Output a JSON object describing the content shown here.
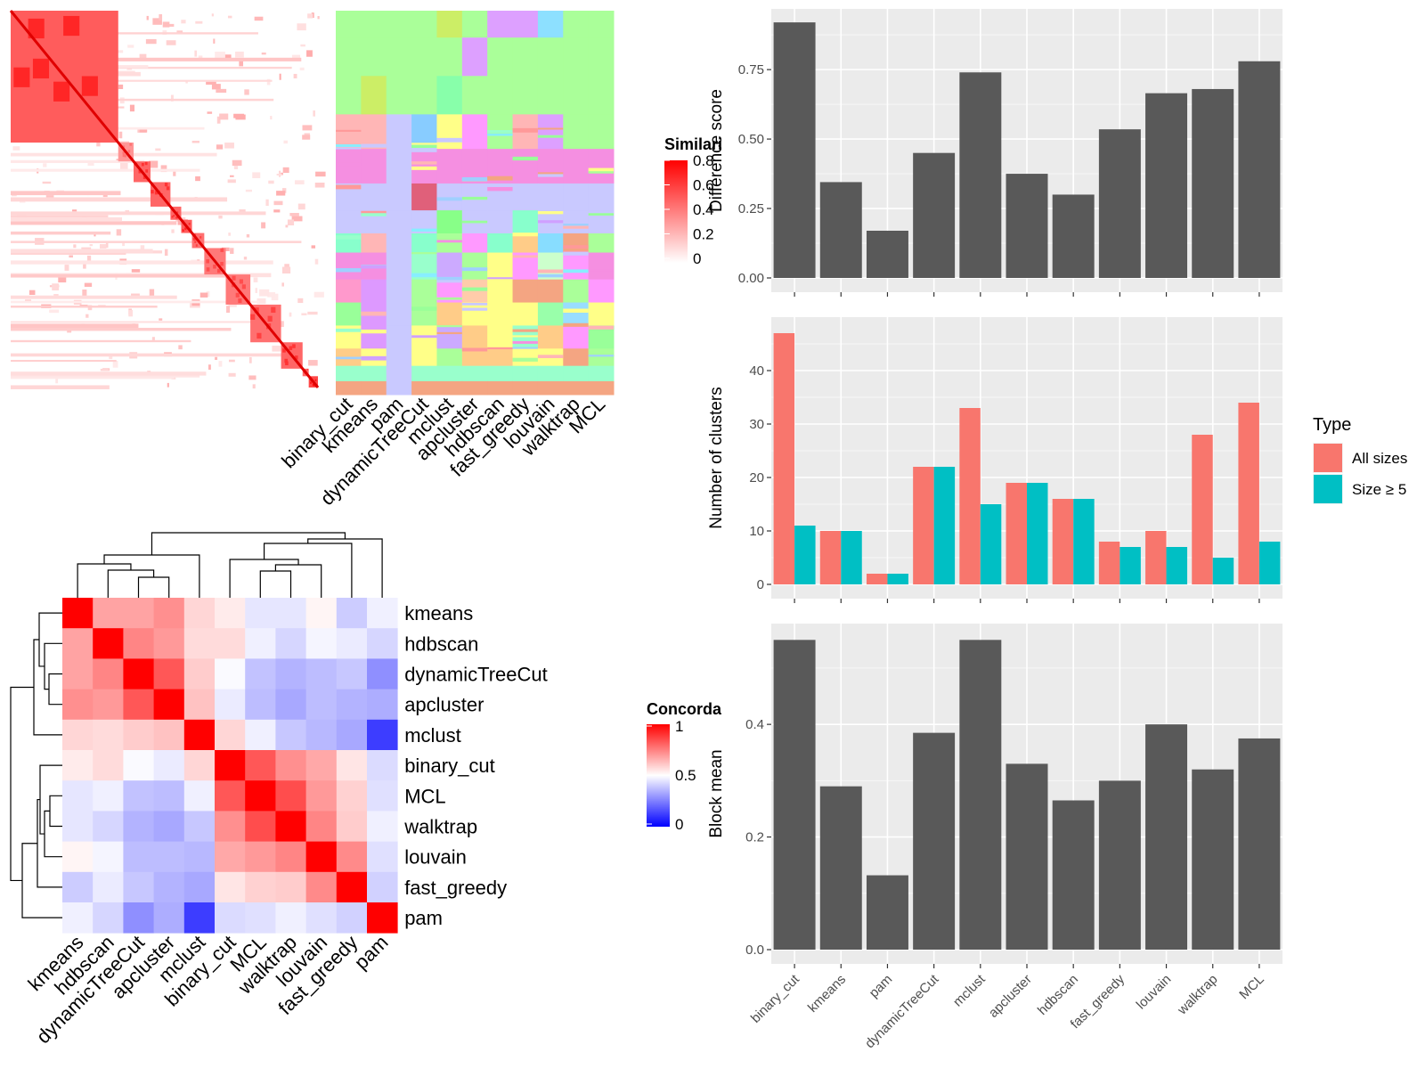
{
  "chart_data": [
    {
      "type": "heatmap",
      "panel": "similarity-matrix",
      "legend_title": "Similarity",
      "legend_ticks": [
        "0",
        "0.2",
        "0.4",
        "0.6",
        "0.8"
      ],
      "colors": {
        "low": "#ffffff",
        "high": "#ff0000"
      },
      "block_ends": [
        0.35,
        0.4,
        0.455,
        0.52,
        0.555,
        0.59,
        0.63,
        0.7,
        0.78,
        0.88,
        0.95,
        0.97,
        1.0
      ],
      "block_strength": [
        0.85,
        0.55,
        0.8,
        0.8,
        0.8,
        0.85,
        0.75,
        0.7,
        0.7,
        0.75,
        0.8,
        0.8,
        0.95
      ]
    },
    {
      "type": "heatmap",
      "panel": "cluster-assignments",
      "columns": [
        "binary_cut",
        "kmeans",
        "pam",
        "dynamicTreeCut",
        "mclust",
        "apcluster",
        "hdbscan",
        "fast_greedy",
        "louvain",
        "walktrap",
        "MCL"
      ],
      "palette": [
        "#aaff99",
        "#f58fe1",
        "#c9c9ff",
        "#ffb6b6",
        "#ff9999",
        "#99ff99",
        "#99ffcc",
        "#ffff88",
        "#a0d0ff",
        "#f4a582",
        "#d0a0ff",
        "#88eeff"
      ],
      "bands": [
        {
          "end": 0.07,
          "colors": [
            "#aaff99",
            "#aaff99",
            "#aaff99",
            "#aaff99",
            "#ccee66",
            "#aaff99",
            "#dda0ff",
            "#dda0ff",
            "#8de0ff",
            "#aaff99",
            "#aaff99"
          ]
        },
        {
          "end": 0.17,
          "colors": [
            "#aaff99",
            "#aaff99",
            "#aaff99",
            "#aaff99",
            "#aaff99",
            "#dda0ff",
            "#aaff99",
            "#aaff99",
            "#aaff99",
            "#aaff99",
            "#aaff99"
          ]
        },
        {
          "end": 0.27,
          "colors": [
            "#aaff99",
            "#ccee66",
            "#aaff99",
            "#aaff99",
            "#88ffaa",
            "#aaff99",
            "#aaff99",
            "#aaff99",
            "#aaff99",
            "#aaff99",
            "#aaff99"
          ]
        },
        {
          "end": 0.36,
          "colors": [
            "#ffb6b6",
            "#ffb6b6",
            "#c9c9ff",
            "#88ccff",
            "#ffff88",
            "#ff99ff",
            "#aaff99",
            "#ffb6b6",
            "#dda0ff",
            "#aaff99",
            "#aaff99"
          ]
        },
        {
          "end": 0.45,
          "colors": [
            "#f58fe1",
            "#f58fe1",
            "#c9c9ff",
            "#f58fe1",
            "#f58fe1",
            "#f58fe1",
            "#f58fe1",
            "#f58fe1",
            "#f58fe1",
            "#f58fe1",
            "#f58fe1"
          ]
        },
        {
          "end": 0.52,
          "colors": [
            "#c9c9ff",
            "#c9c9ff",
            "#c9c9ff",
            "#e0607a",
            "#c9c9ff",
            "#c9c9ff",
            "#c9c9ff",
            "#c9c9ff",
            "#c9c9ff",
            "#c9c9ff",
            "#c9c9ff"
          ]
        },
        {
          "end": 0.58,
          "colors": [
            "#c9c9ff",
            "#c9c9ff",
            "#c9c9ff",
            "#c9c9ff",
            "#88ff88",
            "#c9c9ff",
            "#c9c9ff",
            "#88ffcc",
            "#c9c9ff",
            "#c9c9ff",
            "#c9c9ff"
          ]
        },
        {
          "end": 0.63,
          "colors": [
            "#88ffcc",
            "#ffb6b6",
            "#c9c9ff",
            "#88ffcc",
            "#aaff99",
            "#ff99ff",
            "#88ffcc",
            "#ffcc88",
            "#88ddff",
            "#f4a582",
            "#aaff99"
          ]
        },
        {
          "end": 0.7,
          "colors": [
            "#f58fe1",
            "#f58fe1",
            "#c9c9ff",
            "#99ffcc",
            "#ccaaff",
            "#aaff99",
            "#ffff88",
            "#ff99ff",
            "#ccffcc",
            "#ff99ff",
            "#f58fe1"
          ]
        },
        {
          "end": 0.76,
          "colors": [
            "#ff99cc",
            "#dd99ff",
            "#c9c9ff",
            "#aaff99",
            "#ff99ff",
            "#ffccaa",
            "#ffff88",
            "#f4a582",
            "#f4a582",
            "#aaff99",
            "#ff99ff"
          ]
        },
        {
          "end": 0.82,
          "colors": [
            "#99ff99",
            "#dd99ff",
            "#c9c9ff",
            "#aaff99",
            "#ffcc88",
            "#ffff88",
            "#ffff88",
            "#ffff88",
            "#99ffaa",
            "#99ddff",
            "#ffff88"
          ]
        },
        {
          "end": 0.88,
          "colors": [
            "#ffff88",
            "#dd99ff",
            "#c9c9ff",
            "#ffff88",
            "#ccaaff",
            "#ffcc88",
            "#ffff88",
            "#99ffcc",
            "#ffcc88",
            "#ff99ff",
            "#99ff99"
          ]
        },
        {
          "end": 0.925,
          "colors": [
            "#ffcc88",
            "#ffff88",
            "#c9c9ff",
            "#ffff88",
            "#aaff99",
            "#ffcc88",
            "#ffcc88",
            "#ffff88",
            "#ffff88",
            "#f4a582",
            "#aaff99"
          ]
        },
        {
          "end": 0.965,
          "colors": [
            "#99ffcc",
            "#99ffcc",
            "#c9c9ff",
            "#99ffcc",
            "#99ffcc",
            "#99ffcc",
            "#99ffcc",
            "#99ffcc",
            "#99ffcc",
            "#99ffcc",
            "#99ffcc"
          ]
        },
        {
          "end": 1.0,
          "colors": [
            "#f4a582",
            "#f4a582",
            "#c9c9ff",
            "#f4a582",
            "#f4a582",
            "#f4a582",
            "#f4a582",
            "#f4a582",
            "#f4a582",
            "#f4a582",
            "#f4a582"
          ]
        }
      ]
    },
    {
      "type": "heatmap",
      "panel": "concordance",
      "legend_title": "Concordance",
      "legend_ticks": [
        "0",
        "0.5",
        "1"
      ],
      "colors": {
        "low": "#0000ff",
        "mid": "#ffffff",
        "high": "#ff0000"
      },
      "rows": [
        "kmeans",
        "hdbscan",
        "dynamicTreeCut",
        "apcluster",
        "mclust",
        "binary_cut",
        "MCL",
        "walktrap",
        "louvain",
        "fast_greedy",
        "pam"
      ],
      "columns": [
        "kmeans",
        "hdbscan",
        "dynamicTreeCut",
        "apcluster",
        "mclust",
        "binary_cut",
        "MCL",
        "walktrap",
        "louvain",
        "fast_greedy",
        "pam"
      ],
      "values": [
        [
          1.0,
          0.68,
          0.68,
          0.72,
          0.58,
          0.54,
          0.45,
          0.45,
          0.52,
          0.4,
          0.47
        ],
        [
          0.68,
          1.0,
          0.74,
          0.7,
          0.57,
          0.57,
          0.47,
          0.42,
          0.48,
          0.46,
          0.42
        ],
        [
          0.68,
          0.74,
          1.0,
          0.83,
          0.6,
          0.49,
          0.38,
          0.35,
          0.37,
          0.39,
          0.28
        ],
        [
          0.72,
          0.7,
          0.83,
          1.0,
          0.62,
          0.46,
          0.37,
          0.33,
          0.37,
          0.35,
          0.34
        ],
        [
          0.58,
          0.57,
          0.6,
          0.62,
          1.0,
          0.58,
          0.47,
          0.39,
          0.36,
          0.33,
          0.12
        ],
        [
          0.54,
          0.57,
          0.49,
          0.46,
          0.58,
          1.0,
          0.83,
          0.72,
          0.67,
          0.55,
          0.43
        ],
        [
          0.45,
          0.47,
          0.38,
          0.37,
          0.47,
          0.83,
          1.0,
          0.85,
          0.7,
          0.59,
          0.44
        ],
        [
          0.45,
          0.42,
          0.35,
          0.33,
          0.39,
          0.72,
          0.85,
          1.0,
          0.74,
          0.6,
          0.47
        ],
        [
          0.52,
          0.48,
          0.37,
          0.37,
          0.36,
          0.67,
          0.7,
          0.74,
          1.0,
          0.73,
          0.44
        ],
        [
          0.4,
          0.46,
          0.39,
          0.35,
          0.33,
          0.55,
          0.59,
          0.6,
          0.73,
          1.0,
          0.41
        ],
        [
          0.47,
          0.42,
          0.28,
          0.34,
          0.12,
          0.43,
          0.44,
          0.47,
          0.44,
          0.41,
          1.0
        ]
      ]
    },
    {
      "type": "bar",
      "panel": "difference-score",
      "categories": [
        "binary_cut",
        "kmeans",
        "pam",
        "dynamicTreeCut",
        "mclust",
        "apcluster",
        "hdbscan",
        "fast_greedy",
        "louvain",
        "walktrap",
        "MCL"
      ],
      "values": [
        0.92,
        0.345,
        0.17,
        0.45,
        0.74,
        0.375,
        0.3,
        0.535,
        0.665,
        0.68,
        0.78
      ],
      "ylabel": "Difference score",
      "ylim": [
        0,
        0.93
      ],
      "yticks": [
        0.0,
        0.25,
        0.5,
        0.75
      ],
      "ytick_labels": [
        "0.00",
        "0.25",
        "0.50",
        "0.75"
      ],
      "color": "#595959"
    },
    {
      "type": "bar",
      "panel": "number-of-clusters",
      "categories": [
        "binary_cut",
        "kmeans",
        "pam",
        "dynamicTreeCut",
        "mclust",
        "apcluster",
        "hdbscan",
        "fast_greedy",
        "louvain",
        "walktrap",
        "MCL"
      ],
      "series": [
        {
          "name": "All sizes",
          "values": [
            47,
            10,
            2,
            22,
            33,
            19,
            16,
            8,
            10,
            28,
            34
          ],
          "color": "#f8766d"
        },
        {
          "name": "Size ≥ 5",
          "values": [
            11,
            10,
            2,
            22,
            15,
            19,
            16,
            7,
            7,
            5,
            8
          ],
          "color": "#00bfc4"
        }
      ],
      "ylabel": "Number of clusters",
      "ylim": [
        0,
        48
      ],
      "yticks": [
        0,
        10,
        20,
        30,
        40
      ],
      "ytick_labels": [
        "0",
        "10",
        "20",
        "30",
        "40"
      ],
      "legend_title": "Type",
      "legend_placement": "right"
    },
    {
      "type": "bar",
      "panel": "block-mean",
      "categories": [
        "binary_cut",
        "kmeans",
        "pam",
        "dynamicTreeCut",
        "mclust",
        "apcluster",
        "hdbscan",
        "fast_greedy",
        "louvain",
        "walktrap",
        "MCL"
      ],
      "values": [
        0.55,
        0.29,
        0.132,
        0.385,
        0.55,
        0.33,
        0.265,
        0.3,
        0.4,
        0.32,
        0.375
      ],
      "ylabel": "Block mean",
      "ylim": [
        0,
        0.56
      ],
      "yticks": [
        0.0,
        0.2,
        0.4
      ],
      "ytick_labels": [
        "0.0",
        "0.2",
        "0.4"
      ],
      "color": "#595959"
    }
  ]
}
